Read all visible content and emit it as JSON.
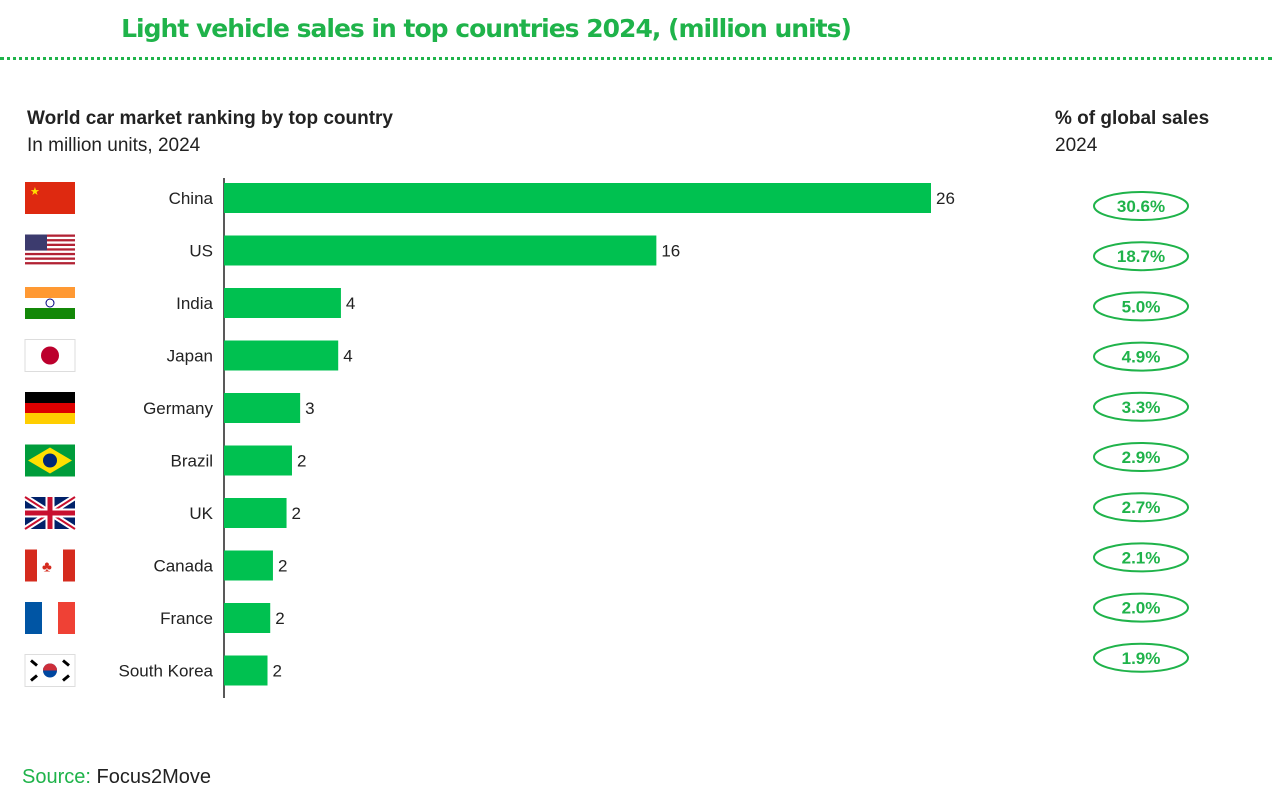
{
  "title": "Light vehicle sales in top countries 2024, (million units)",
  "source_label": "Source:",
  "source_value": "Focus2Move",
  "chart_data": {
    "type": "bar",
    "orientation": "horizontal",
    "title": "World car market ranking by top country",
    "subtitle": "In million units, 2024",
    "share_title": "% of global sales",
    "share_subtitle": "2024",
    "categories": [
      "China",
      "US",
      "India",
      "Japan",
      "Germany",
      "Brazil",
      "UK",
      "Canada",
      "France",
      "South Korea"
    ],
    "values": [
      26,
      15.9,
      4.3,
      4.2,
      2.8,
      2.5,
      2.3,
      1.8,
      1.7,
      1.6
    ],
    "value_labels": [
      "26",
      "16",
      "4",
      "4",
      "3",
      "2",
      "2",
      "2",
      "2",
      "2"
    ],
    "share_labels": [
      "30.6%",
      "18.7%",
      "5.0%",
      "4.9%",
      "3.3%",
      "2.9%",
      "2.7%",
      "2.1%",
      "2.0%",
      "1.9%"
    ],
    "flags": [
      "china-flag",
      "us-flag",
      "india-flag",
      "japan-flag",
      "germany-flag",
      "brazil-flag",
      "uk-flag",
      "canada-flag",
      "france-flag",
      "south-korea-flag"
    ],
    "bar_color": "#00c150",
    "xlim": [
      0,
      26
    ]
  }
}
